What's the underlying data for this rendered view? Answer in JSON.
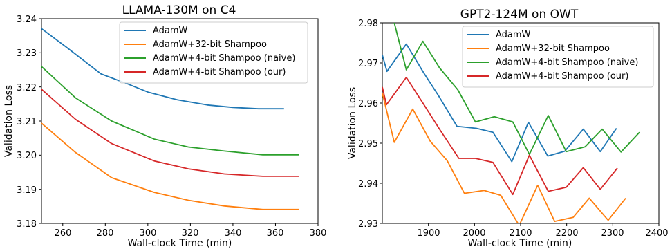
{
  "chart_data": [
    {
      "type": "line",
      "title": "LLAMA-130M on C4",
      "xlabel": "Wall-clock Time (min)",
      "ylabel": "Validation Loss",
      "xlim": [
        250,
        380
      ],
      "ylim": [
        3.18,
        3.24
      ],
      "xticks": [
        260,
        280,
        300,
        320,
        340,
        360,
        380
      ],
      "yticks": [
        3.18,
        3.19,
        3.2,
        3.21,
        3.22,
        3.23,
        3.24
      ],
      "xtick_labels": [
        "260",
        "280",
        "300",
        "320",
        "340",
        "360",
        "380"
      ],
      "ytick_labels": [
        "3.18",
        "3.19",
        "3.20",
        "3.21",
        "3.22",
        "3.23",
        "3.24"
      ],
      "grid": false,
      "legend_position": "top-right",
      "series": [
        {
          "name": "AdamW",
          "color": "#1f77b4",
          "x": [
            250,
            262,
            278,
            290,
            300,
            314,
            328,
            340,
            352,
            364
          ],
          "y": [
            3.2371,
            3.2315,
            3.2238,
            3.221,
            3.2185,
            3.2162,
            3.2147,
            3.214,
            3.2136,
            3.2136
          ]
        },
        {
          "name": "AdamW+32-bit Shampoo",
          "color": "#ff7f0e",
          "x": [
            250,
            266,
            283,
            303,
            319,
            336,
            354,
            371
          ],
          "y": [
            3.2094,
            3.2008,
            3.1934,
            3.1891,
            3.1868,
            3.1851,
            3.1841,
            3.1841
          ]
        },
        {
          "name": "AdamW+4-bit Shampoo (naive)",
          "color": "#2ca02c",
          "x": [
            250,
            266,
            283,
            303,
            319,
            336,
            354,
            371
          ],
          "y": [
            3.226,
            3.2168,
            3.21,
            3.2047,
            3.2024,
            3.2012,
            3.2001,
            3.2001
          ]
        },
        {
          "name": "AdamW+4-bit Shampoo (our)",
          "color": "#d62728",
          "x": [
            250,
            266,
            283,
            303,
            319,
            336,
            354,
            371
          ],
          "y": [
            3.2193,
            3.2105,
            3.2034,
            3.1983,
            3.196,
            3.1945,
            3.1938,
            3.1938
          ]
        }
      ]
    },
    {
      "type": "line",
      "title": "GPT2-124M on OWT",
      "xlabel": "Wall-clock Time (min)",
      "ylabel": "Validation Loss",
      "xlim": [
        1800,
        2400
      ],
      "ylim": [
        2.93,
        2.98
      ],
      "xticks": [
        1900,
        2000,
        2100,
        2200,
        2300,
        2400
      ],
      "yticks": [
        2.93,
        2.94,
        2.95,
        2.96,
        2.97,
        2.98
      ],
      "xtick_labels": [
        "1900",
        "2000",
        "2100",
        "2200",
        "2300",
        "2400"
      ],
      "ytick_labels": [
        "2.93",
        "2.94",
        "2.95",
        "2.96",
        "2.97",
        "2.98"
      ],
      "grid": false,
      "legend_position": "top-right",
      "series": [
        {
          "name": "AdamW",
          "color": "#1f77b4",
          "x": [
            1800,
            1810,
            1852,
            1890,
            1921,
            1962,
            2004,
            2040,
            2081,
            2117,
            2159,
            2196,
            2236,
            2273,
            2308
          ],
          "y": [
            2.972,
            2.9679,
            2.9747,
            2.9675,
            2.962,
            2.9542,
            2.9537,
            2.9527,
            2.9454,
            2.9552,
            2.9468,
            2.948,
            2.9535,
            2.9479,
            2.9537
          ]
        },
        {
          "name": "AdamW+32-bit Shampoo",
          "color": "#ff7f0e",
          "x": [
            1800,
            1826,
            1866,
            1904,
            1941,
            1978,
            2021,
            2057,
            2097,
            2137,
            2174,
            2214,
            2249,
            2290,
            2328
          ],
          "y": [
            2.9625,
            2.9502,
            2.9585,
            2.9505,
            2.9456,
            2.9375,
            2.9382,
            2.937,
            2.9295,
            2.9395,
            2.9305,
            2.9315,
            2.9363,
            2.9308,
            2.9363
          ]
        },
        {
          "name": "AdamW+4-bit Shampoo (naive)",
          "color": "#2ca02c",
          "x": [
            1800,
            1826,
            1852,
            1888,
            1924,
            1964,
            2002,
            2043,
            2083,
            2119,
            2160,
            2199,
            2240,
            2277,
            2318,
            2358
          ],
          "y": [
            2.9832,
            2.98,
            2.9683,
            2.9754,
            2.9688,
            2.9633,
            2.9553,
            2.9566,
            2.9553,
            2.9472,
            2.9569,
            2.9479,
            2.9491,
            2.9535,
            2.9478,
            2.9527
          ]
        },
        {
          "name": "AdamW+4-bit Shampoo (our)",
          "color": "#d62728",
          "x": [
            1800,
            1809,
            1852,
            1888,
            1924,
            1966,
            2002,
            2040,
            2083,
            2119,
            2160,
            2199,
            2236,
            2273,
            2310
          ],
          "y": [
            2.964,
            2.9596,
            2.9664,
            2.96,
            2.9535,
            2.9462,
            2.9462,
            2.9452,
            2.9372,
            2.947,
            2.938,
            2.939,
            2.9439,
            2.9385,
            2.9438
          ]
        }
      ]
    }
  ]
}
